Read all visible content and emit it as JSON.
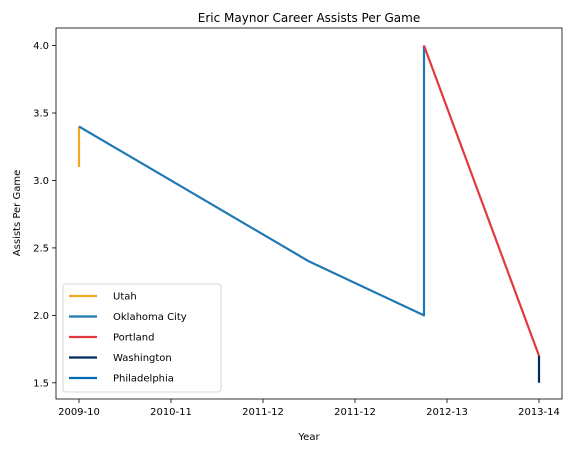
{
  "chart_data": {
    "type": "line",
    "title": "Eric Maynor Career Assists Per Game",
    "xlabel": "Year",
    "ylabel": "Assists Per Game",
    "x_tick_labels": [
      "2009-10",
      "2010-11",
      "2011-12",
      "2011-12",
      "2012-13",
      "2013-14"
    ],
    "x_tick_positions": [
      0,
      1,
      2,
      3,
      4,
      5
    ],
    "xlim": [
      -0.25,
      5.25
    ],
    "ylim": [
      1.38,
      4.13
    ],
    "y_ticks": [
      1.5,
      2.0,
      2.5,
      3.0,
      3.5,
      4.0
    ],
    "y_tick_labels": [
      "1.5",
      "2.0",
      "2.5",
      "3.0",
      "3.5",
      "4.0"
    ],
    "grid": false,
    "legend_position": "lower-left",
    "series": [
      {
        "name": "Utah",
        "color": "#f5a623",
        "points": [
          [
            0,
            3.1
          ],
          [
            0,
            3.4
          ]
        ]
      },
      {
        "name": "Oklahoma City",
        "color": "#1f77b4",
        "points": [
          [
            0,
            3.4
          ],
          [
            2.5,
            2.4
          ],
          [
            3.75,
            2.0
          ],
          [
            3.75,
            4.0
          ]
        ]
      },
      {
        "name": "Portland",
        "color": "#e03a3e",
        "points": [
          [
            3.75,
            4.0
          ],
          [
            5,
            1.7
          ]
        ]
      },
      {
        "name": "Washington",
        "color": "#002b5c",
        "points": [
          [
            5,
            1.7
          ],
          [
            5,
            1.5
          ]
        ]
      },
      {
        "name": "Philadelphia",
        "color": "#006bb6",
        "points": []
      }
    ]
  }
}
